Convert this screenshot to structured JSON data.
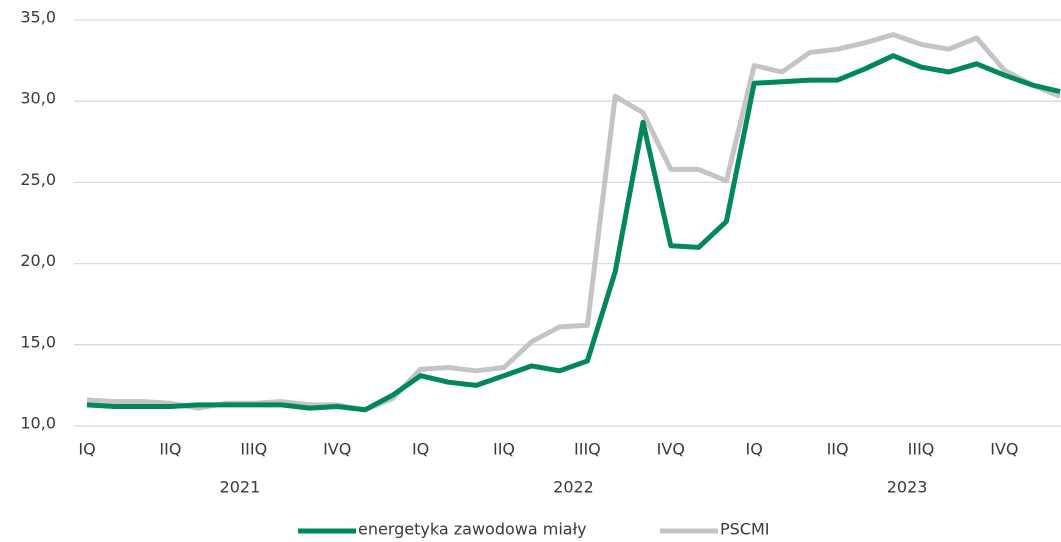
{
  "chart_data": {
    "type": "line",
    "categories": [
      "IQ",
      null,
      null,
      "IIQ",
      null,
      null,
      "IIIQ",
      null,
      null,
      "IVQ",
      null,
      null,
      "IQ",
      null,
      null,
      "IIQ",
      null,
      null,
      "IIIQ",
      null,
      null,
      "IVQ",
      null,
      null,
      "IQ",
      null,
      null,
      "IIQ",
      null,
      null,
      "IIIQ",
      null,
      null,
      "IVQ",
      null,
      null
    ],
    "years": [
      "2021",
      "2022",
      "2023"
    ],
    "series": [
      {
        "name": "energetyka zawodowa miały",
        "color": "#00875a",
        "values": [
          11.3,
          11.2,
          11.2,
          11.2,
          11.3,
          11.3,
          11.3,
          11.3,
          11.1,
          11.2,
          11.0,
          11.9,
          13.1,
          12.7,
          12.5,
          13.1,
          13.7,
          13.4,
          14.0,
          19.5,
          28.7,
          21.1,
          21.0,
          22.6,
          31.1,
          31.2,
          31.3,
          31.3,
          32.0,
          32.8,
          32.1,
          31.8,
          32.3,
          31.6,
          31.0,
          30.6
        ]
      },
      {
        "name": "PSCMI",
        "color": "#c4c4c4",
        "values": [
          11.6,
          11.5,
          11.5,
          11.4,
          11.1,
          11.4,
          11.4,
          11.5,
          11.3,
          11.3,
          11.0,
          11.7,
          13.5,
          13.6,
          13.4,
          13.6,
          15.2,
          16.1,
          16.2,
          30.3,
          29.3,
          25.8,
          25.8,
          25.1,
          32.2,
          31.8,
          33.0,
          33.2,
          33.6,
          34.1,
          33.5,
          33.2,
          33.9,
          31.9,
          31.0,
          30.3
        ]
      }
    ],
    "ylim": [
      10,
      35
    ],
    "yticks": [
      {
        "value": 10,
        "label": "10,0"
      },
      {
        "value": 15,
        "label": "15,0"
      },
      {
        "value": 20,
        "label": "20,0"
      },
      {
        "value": 25,
        "label": "25,0"
      },
      {
        "value": 30,
        "label": "30,0"
      },
      {
        "value": 35,
        "label": "35,0"
      }
    ],
    "grid": true,
    "legend": "bottom"
  }
}
